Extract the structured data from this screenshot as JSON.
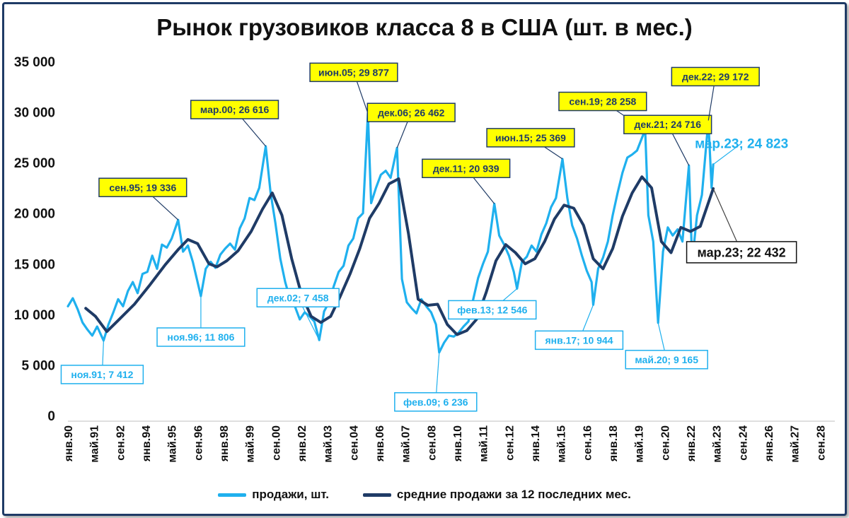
{
  "chart_data": {
    "type": "line",
    "title": "Рынок грузовиков класса 8 в США (шт. в мес.)",
    "ylim": [
      0,
      35000
    ],
    "y_ticks": [
      "0",
      "5 000",
      "10 000",
      "15 000",
      "20 000",
      "25 000",
      "30 000",
      "35 000"
    ],
    "y_tick_values": [
      0,
      5000,
      10000,
      15000,
      20000,
      25000,
      30000,
      35000
    ],
    "xlim": [
      "1990-01",
      "2029-06"
    ],
    "x_ticks": [
      "янв.90",
      "май.91",
      "сен.92",
      "янв.94",
      "май.95",
      "сен.96",
      "янв.98",
      "май.99",
      "сен.00",
      "янв.02",
      "май.03",
      "сен.04",
      "янв.06",
      "май.07",
      "сен.08",
      "янв.10",
      "май.11",
      "сен.12",
      "янв.14",
      "май.15",
      "сен.16",
      "янв.18",
      "май.19",
      "сен.20",
      "янв.22",
      "май.23",
      "сен.24",
      "янв.26",
      "май.27",
      "сен.28"
    ],
    "x_tick_dates": [
      "1990-01",
      "1991-05",
      "1992-09",
      "1994-01",
      "1995-05",
      "1996-09",
      "1998-01",
      "1999-05",
      "2000-09",
      "2002-01",
      "2003-05",
      "2004-09",
      "2006-01",
      "2007-05",
      "2008-09",
      "2010-01",
      "2011-05",
      "2012-09",
      "2014-01",
      "2015-05",
      "2016-09",
      "2018-01",
      "2019-05",
      "2020-09",
      "2022-01",
      "2023-05",
      "2024-09",
      "2026-01",
      "2027-05",
      "2028-09"
    ],
    "grid": false,
    "legend_position": "bottom",
    "series": [
      {
        "name": "продажи, шт.",
        "color": "#1fb0ee",
        "points": [
          [
            "1990-01",
            10800
          ],
          [
            "1990-04",
            11600
          ],
          [
            "1990-07",
            10500
          ],
          [
            "1990-10",
            9200
          ],
          [
            "1991-01",
            8500
          ],
          [
            "1991-04",
            7900
          ],
          [
            "1991-07",
            8800
          ],
          [
            "1991-11",
            7412
          ],
          [
            "1992-02",
            9000
          ],
          [
            "1992-05",
            10200
          ],
          [
            "1992-08",
            11500
          ],
          [
            "1992-11",
            10800
          ],
          [
            "1993-02",
            12300
          ],
          [
            "1993-05",
            13200
          ],
          [
            "1993-08",
            12100
          ],
          [
            "1993-11",
            14000
          ],
          [
            "1994-02",
            14200
          ],
          [
            "1994-05",
            15800
          ],
          [
            "1994-08",
            14500
          ],
          [
            "1994-11",
            16900
          ],
          [
            "1995-02",
            16600
          ],
          [
            "1995-05",
            17500
          ],
          [
            "1995-09",
            19336
          ],
          [
            "1995-12",
            16200
          ],
          [
            "1996-03",
            16800
          ],
          [
            "1996-06",
            15200
          ],
          [
            "1996-11",
            11806
          ],
          [
            "1997-02",
            14500
          ],
          [
            "1997-05",
            15200
          ],
          [
            "1997-08",
            14600
          ],
          [
            "1997-11",
            15900
          ],
          [
            "1998-02",
            16500
          ],
          [
            "1998-05",
            17000
          ],
          [
            "1998-08",
            16400
          ],
          [
            "1998-11",
            18500
          ],
          [
            "1999-02",
            19500
          ],
          [
            "1999-05",
            21500
          ],
          [
            "1999-08",
            21300
          ],
          [
            "1999-11",
            22500
          ],
          [
            "2000-03",
            26616
          ],
          [
            "2000-06",
            22000
          ],
          [
            "2000-09",
            19000
          ],
          [
            "2000-12",
            15500
          ],
          [
            "2001-03",
            13200
          ],
          [
            "2001-06",
            11500
          ],
          [
            "2001-09",
            10800
          ],
          [
            "2001-12",
            9500
          ],
          [
            "2002-03",
            10200
          ],
          [
            "2002-06",
            9800
          ],
          [
            "2002-09",
            9300
          ],
          [
            "2002-12",
            7458
          ],
          [
            "2003-03",
            10300
          ],
          [
            "2003-06",
            11200
          ],
          [
            "2003-09",
            12800
          ],
          [
            "2003-12",
            14200
          ],
          [
            "2004-03",
            14800
          ],
          [
            "2004-06",
            16800
          ],
          [
            "2004-09",
            17500
          ],
          [
            "2004-12",
            19500
          ],
          [
            "2005-03",
            20000
          ],
          [
            "2005-06",
            29877
          ],
          [
            "2005-08",
            21000
          ],
          [
            "2005-11",
            22500
          ],
          [
            "2006-02",
            23800
          ],
          [
            "2006-05",
            24200
          ],
          [
            "2006-08",
            23500
          ],
          [
            "2006-12",
            26462
          ],
          [
            "2007-03",
            13500
          ],
          [
            "2007-06",
            11200
          ],
          [
            "2007-09",
            10600
          ],
          [
            "2007-12",
            10100
          ],
          [
            "2008-03",
            11500
          ],
          [
            "2008-06",
            10800
          ],
          [
            "2008-09",
            10200
          ],
          [
            "2008-12",
            9000
          ],
          [
            "2009-02",
            6236
          ],
          [
            "2009-05",
            7200
          ],
          [
            "2009-08",
            7900
          ],
          [
            "2009-11",
            7800
          ],
          [
            "2010-02",
            8200
          ],
          [
            "2010-05",
            8800
          ],
          [
            "2010-08",
            9300
          ],
          [
            "2010-11",
            11500
          ],
          [
            "2011-02",
            13600
          ],
          [
            "2011-05",
            15000
          ],
          [
            "2011-08",
            16200
          ],
          [
            "2011-12",
            20939
          ],
          [
            "2012-03",
            17800
          ],
          [
            "2012-06",
            16900
          ],
          [
            "2012-09",
            15800
          ],
          [
            "2012-12",
            14200
          ],
          [
            "2013-02",
            12546
          ],
          [
            "2013-05",
            15200
          ],
          [
            "2013-08",
            15700
          ],
          [
            "2013-11",
            16800
          ],
          [
            "2014-02",
            16200
          ],
          [
            "2014-05",
            17900
          ],
          [
            "2014-08",
            19000
          ],
          [
            "2014-11",
            20600
          ],
          [
            "2015-02",
            21500
          ],
          [
            "2015-06",
            25369
          ],
          [
            "2015-09",
            21500
          ],
          [
            "2015-12",
            18800
          ],
          [
            "2016-03",
            17500
          ],
          [
            "2016-06",
            15800
          ],
          [
            "2016-09",
            14300
          ],
          [
            "2016-12",
            13200
          ],
          [
            "2017-01",
            10944
          ],
          [
            "2017-04",
            14500
          ],
          [
            "2017-07",
            15600
          ],
          [
            "2017-10",
            17200
          ],
          [
            "2018-01",
            19800
          ],
          [
            "2018-04",
            22000
          ],
          [
            "2018-07",
            24000
          ],
          [
            "2018-10",
            25500
          ],
          [
            "2019-01",
            25800
          ],
          [
            "2019-04",
            26200
          ],
          [
            "2019-09",
            28258
          ],
          [
            "2019-11",
            19800
          ],
          [
            "2020-02",
            17200
          ],
          [
            "2020-05",
            9165
          ],
          [
            "2020-08",
            16200
          ],
          [
            "2020-11",
            18600
          ],
          [
            "2021-02",
            17800
          ],
          [
            "2021-05",
            18400
          ],
          [
            "2021-08",
            17200
          ],
          [
            "2021-12",
            24716
          ],
          [
            "2022-02",
            15200
          ],
          [
            "2022-05",
            19800
          ],
          [
            "2022-08",
            21800
          ],
          [
            "2022-12",
            29172
          ],
          [
            "2023-02",
            22500
          ],
          [
            "2023-03",
            24823
          ]
        ]
      },
      {
        "name": "средние продажи за 12 последних мес.",
        "color": "#1f3b66",
        "points": [
          [
            "1990-12",
            10600
          ],
          [
            "1991-06",
            9800
          ],
          [
            "1992-01",
            8300
          ],
          [
            "1992-08",
            9400
          ],
          [
            "1993-06",
            11000
          ],
          [
            "1994-03",
            12800
          ],
          [
            "1995-01",
            14900
          ],
          [
            "1995-09",
            16400
          ],
          [
            "1996-03",
            17400
          ],
          [
            "1996-09",
            17000
          ],
          [
            "1997-04",
            15000
          ],
          [
            "1997-09",
            14700
          ],
          [
            "1998-03",
            15300
          ],
          [
            "1998-10",
            16300
          ],
          [
            "1999-06",
            18200
          ],
          [
            "2000-01",
            20400
          ],
          [
            "2000-07",
            22000
          ],
          [
            "2001-01",
            19800
          ],
          [
            "2001-07",
            15500
          ],
          [
            "2002-01",
            12000
          ],
          [
            "2002-07",
            9800
          ],
          [
            "2003-01",
            9200
          ],
          [
            "2003-07",
            9800
          ],
          [
            "2004-01",
            11800
          ],
          [
            "2004-07",
            14000
          ],
          [
            "2005-01",
            16500
          ],
          [
            "2005-07",
            19500
          ],
          [
            "2006-01",
            21000
          ],
          [
            "2006-07",
            22900
          ],
          [
            "2007-01",
            23400
          ],
          [
            "2007-07",
            18000
          ],
          [
            "2008-01",
            11500
          ],
          [
            "2008-07",
            10900
          ],
          [
            "2009-01",
            11000
          ],
          [
            "2009-07",
            9000
          ],
          [
            "2010-01",
            8000
          ],
          [
            "2010-07",
            8400
          ],
          [
            "2011-01",
            9500
          ],
          [
            "2011-07",
            12200
          ],
          [
            "2012-01",
            15300
          ],
          [
            "2012-07",
            16900
          ],
          [
            "2013-01",
            16100
          ],
          [
            "2013-07",
            15000
          ],
          [
            "2014-01",
            15500
          ],
          [
            "2014-07",
            17200
          ],
          [
            "2015-01",
            19400
          ],
          [
            "2015-07",
            20800
          ],
          [
            "2016-01",
            20500
          ],
          [
            "2016-07",
            18800
          ],
          [
            "2017-01",
            15500
          ],
          [
            "2017-07",
            14500
          ],
          [
            "2018-01",
            16500
          ],
          [
            "2018-07",
            19700
          ],
          [
            "2019-01",
            22000
          ],
          [
            "2019-07",
            23600
          ],
          [
            "2020-01",
            22500
          ],
          [
            "2020-07",
            17200
          ],
          [
            "2021-01",
            16100
          ],
          [
            "2021-07",
            18600
          ],
          [
            "2022-01",
            18200
          ],
          [
            "2022-07",
            18700
          ],
          [
            "2023-03",
            22432
          ]
        ]
      }
    ],
    "annotations": [
      {
        "text": "ноя.91; 7 412",
        "date": "1991-11",
        "value": 7412,
        "style": "blue-border"
      },
      {
        "text": "сен.95; 19 336",
        "date": "1995-09",
        "value": 19336,
        "style": "yellow"
      },
      {
        "text": "ноя.96; 11 806",
        "date": "1996-11",
        "value": 11806,
        "style": "blue-border"
      },
      {
        "text": "мар.00; 26 616",
        "date": "2000-03",
        "value": 26616,
        "style": "yellow"
      },
      {
        "text": "дек.02; 7 458",
        "date": "2002-12",
        "value": 7458,
        "style": "blue-border"
      },
      {
        "text": "июн.05; 29 877",
        "date": "2005-06",
        "value": 29877,
        "style": "yellow"
      },
      {
        "text": "дек.06; 26 462",
        "date": "2006-12",
        "value": 26462,
        "style": "yellow"
      },
      {
        "text": "фев.09; 6 236",
        "date": "2009-02",
        "value": 6236,
        "style": "blue-border"
      },
      {
        "text": "дек.11; 20 939",
        "date": "2011-12",
        "value": 20939,
        "style": "yellow"
      },
      {
        "text": "фев.13; 12 546",
        "date": "2013-02",
        "value": 12546,
        "style": "blue-border"
      },
      {
        "text": "июн.15; 25 369",
        "date": "2015-06",
        "value": 25369,
        "style": "yellow"
      },
      {
        "text": "янв.17; 10 944",
        "date": "2017-01",
        "value": 10944,
        "style": "blue-border"
      },
      {
        "text": "сен.19; 28 258",
        "date": "2019-09",
        "value": 28258,
        "style": "yellow"
      },
      {
        "text": "май.20; 9 165",
        "date": "2020-05",
        "value": 9165,
        "style": "blue-border"
      },
      {
        "text": "дек.21; 24 716",
        "date": "2021-12",
        "value": 24716,
        "style": "yellow"
      },
      {
        "text": "дек.22; 29 172",
        "date": "2022-12",
        "value": 29172,
        "style": "yellow"
      },
      {
        "text": "мар.23; 24 823",
        "date": "2023-03",
        "value": 24823,
        "style": "plain-blue"
      },
      {
        "text": "мар.23; 22 432",
        "date": "2023-03",
        "value": 22432,
        "style": "black-border"
      }
    ]
  },
  "legend": [
    {
      "label": "продажи, шт.",
      "color": "#1fb0ee"
    },
    {
      "label": "средние продажи за 12 последних мес.",
      "color": "#1f3b66"
    }
  ]
}
